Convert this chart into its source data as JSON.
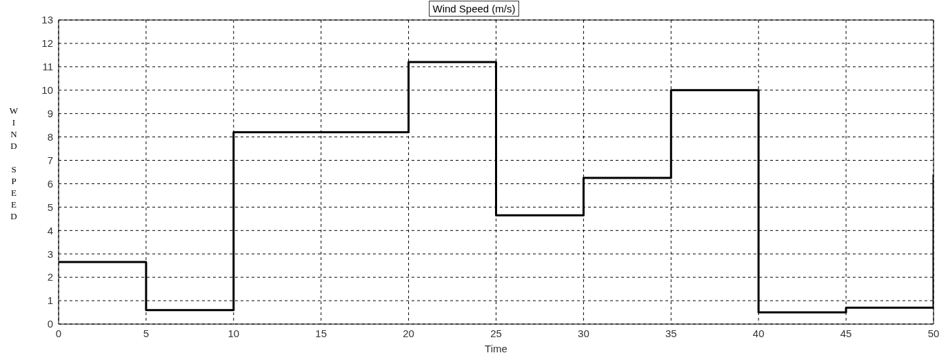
{
  "chart_data": {
    "type": "step",
    "title": "Wind Speed (m/s)",
    "xlabel": "Time",
    "ylabel": "WIND SPEED",
    "x": [
      0,
      5,
      10,
      20,
      25,
      30,
      35,
      40,
      45,
      50
    ],
    "series": [
      {
        "color": "#000000",
        "values": [
          2.65,
          0.6,
          8.2,
          11.2,
          4.65,
          6.25,
          10,
          0.5,
          0.7,
          6.4
        ]
      }
    ],
    "xlim": [
      0,
      50
    ],
    "xticks": [
      0,
      5,
      10,
      15,
      20,
      25,
      30,
      35,
      40,
      45,
      50
    ],
    "ylim": [
      0,
      13
    ],
    "yticks": [
      0,
      1,
      2,
      3,
      4,
      5,
      6,
      7,
      8,
      9,
      10,
      11,
      12,
      13
    ],
    "grid": true,
    "legend": false,
    "marker": "none",
    "line_style": "solid"
  }
}
